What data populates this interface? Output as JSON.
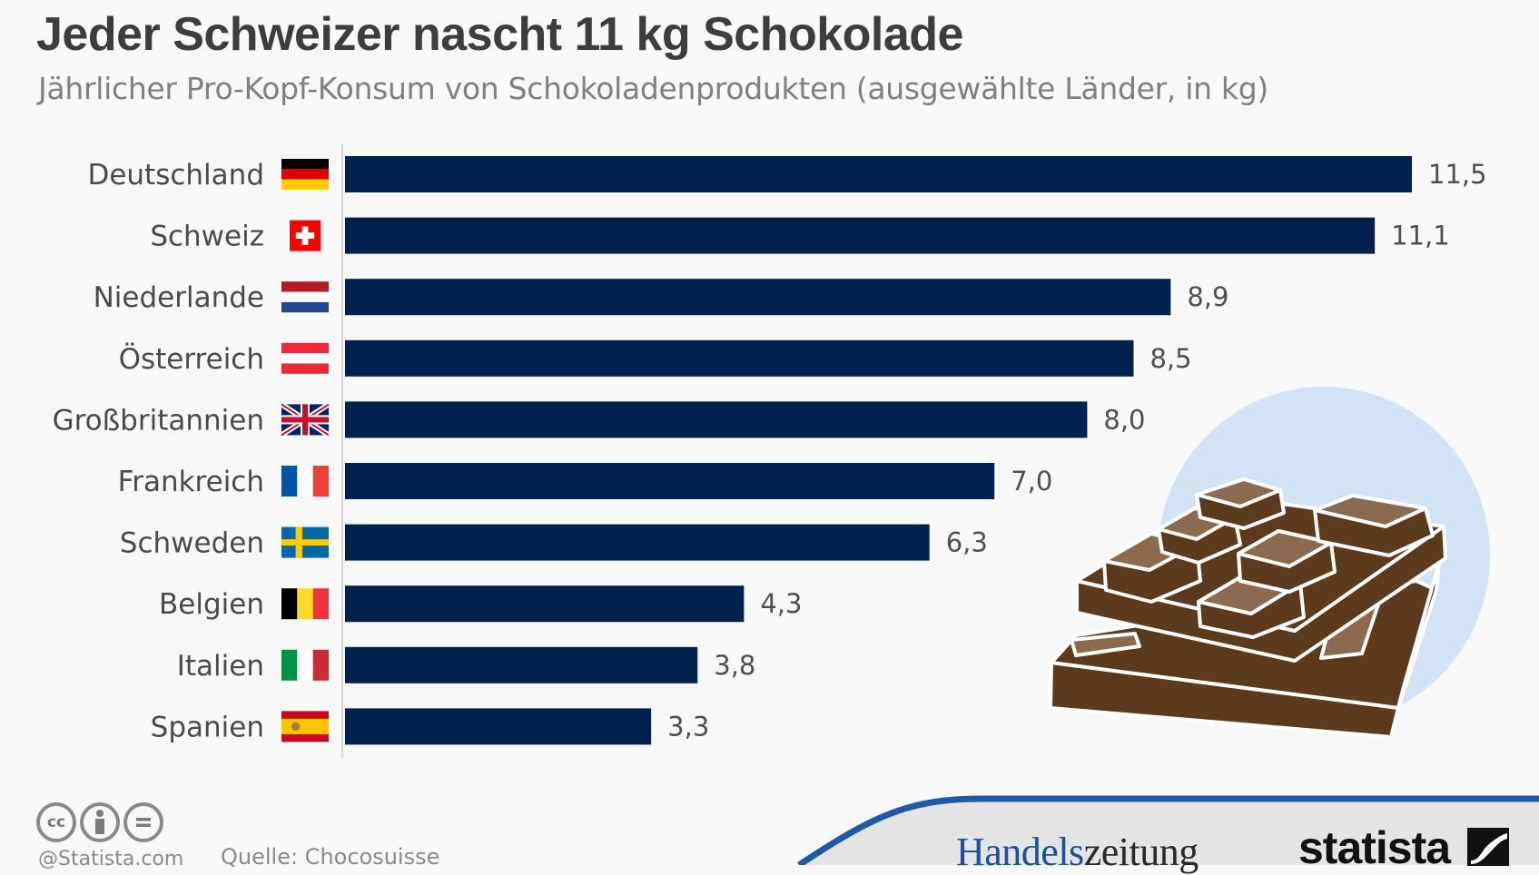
{
  "header": {
    "title": "Jeder Schweizer nascht 11 kg Schokolade",
    "subtitle": "Jährlicher Pro-Kopf-Konsum von Schokoladenprodukten (ausgewählte Länder, in kg)"
  },
  "chart_data": {
    "type": "bar",
    "orientation": "horizontal",
    "title": "Jeder Schweizer nascht 11 kg Schokolade",
    "subtitle": "Jährlicher Pro-Kopf-Konsum von Schokoladenprodukten (ausgewählte Länder, in kg)",
    "xlabel": "",
    "ylabel": "",
    "xlim": [
      0,
      11.5
    ],
    "grid": false,
    "bar_color": "#00214d",
    "categories": [
      "Deutschland",
      "Schweiz",
      "Niederlande",
      "Österreich",
      "Großbritannien",
      "Frankreich",
      "Schweden",
      "Belgien",
      "Italien",
      "Spanien"
    ],
    "values": [
      11.5,
      11.1,
      8.9,
      8.5,
      8.0,
      7.0,
      6.3,
      4.3,
      3.8,
      3.3
    ],
    "value_labels": [
      "11,5",
      "11,1",
      "8,9",
      "8,5",
      "8,0",
      "7,0",
      "6,3",
      "4,3",
      "3,8",
      "3,3"
    ],
    "flags": [
      "germany-flag-icon",
      "switzerland-flag-icon",
      "netherlands-flag-icon",
      "austria-flag-icon",
      "uk-flag-icon",
      "france-flag-icon",
      "sweden-flag-icon",
      "belgium-flag-icon",
      "italy-flag-icon",
      "spain-flag-icon"
    ]
  },
  "illustration": {
    "icon": "chocolate-bar-icon",
    "circle_color": "#d3e3f6",
    "chocolate_dark": "#5c3a1e",
    "chocolate_light": "#8c6a4f"
  },
  "footer": {
    "license_icons": [
      "cc-icon",
      "attribution-icon",
      "no-derivatives-icon"
    ],
    "cc_text": "cc",
    "credit": "@Statista.com",
    "source": "Quelle: Chocosuisse",
    "brand_partner_a": "Handels",
    "brand_partner_b": "zeitung",
    "brand_statista": "statista",
    "band_color": "#1f5aa6"
  }
}
